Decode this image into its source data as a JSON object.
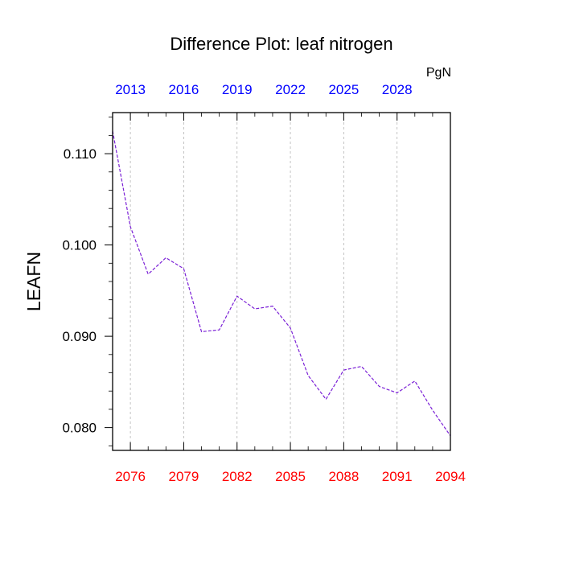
{
  "chart_data": {
    "type": "line",
    "title": "Difference Plot: leaf nitrogen",
    "ylabel": "LEAFN",
    "units": "PgN",
    "x_bottom": {
      "ticks": [
        2076,
        2079,
        2082,
        2085,
        2088,
        2091,
        2094
      ],
      "labels": [
        "2076",
        "2079",
        "2082",
        "2085",
        "2088",
        "2091",
        "2094"
      ],
      "color": "#ff0000",
      "xlim": [
        2075,
        2094
      ]
    },
    "x_top": {
      "ticks": [
        2013,
        2016,
        2019,
        2022,
        2025,
        2028
      ],
      "labels": [
        "2013",
        "2016",
        "2019",
        "2022",
        "2025",
        "2028"
      ],
      "color": "#0000ff",
      "xlim": [
        2012,
        2031
      ]
    },
    "y_axis": {
      "ticks": [
        0.08,
        0.09,
        0.1,
        0.11
      ],
      "labels": [
        "0.080",
        "0.090",
        "0.100",
        "0.110"
      ],
      "ylim": [
        0.0775,
        0.1145
      ]
    },
    "grid": "vertical dashed at bottom ticks",
    "series": [
      {
        "color": "#7a1fd6",
        "style": "dashed",
        "x": [
          2075,
          2076,
          2077,
          2078,
          2079,
          2080,
          2081,
          2082,
          2083,
          2084,
          2085,
          2086,
          2087,
          2088,
          2089,
          2090,
          2091,
          2092,
          2093,
          2094
        ],
        "values": [
          0.1125,
          0.102,
          0.0968,
          0.0986,
          0.0974,
          0.0905,
          0.0907,
          0.0944,
          0.093,
          0.0933,
          0.0909,
          0.0857,
          0.0831,
          0.0863,
          0.0867,
          0.0845,
          0.0838,
          0.0851,
          0.0819,
          0.0791
        ]
      }
    ]
  }
}
